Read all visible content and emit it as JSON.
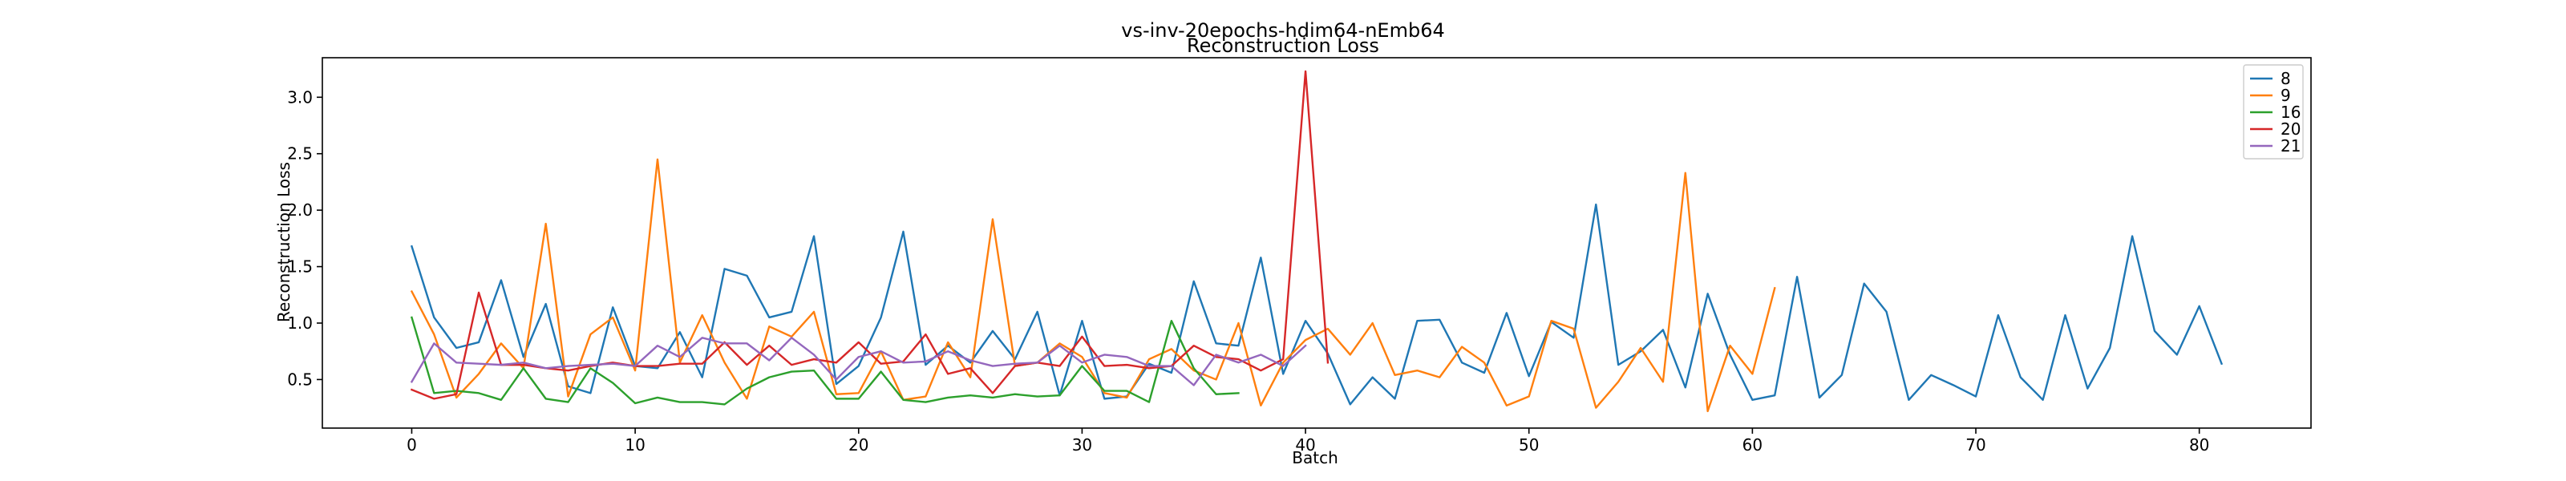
{
  "chart_data": {
    "type": "line",
    "title": "vs-inv-20epochs-hdim64-nEmb64",
    "subtitle": "Reconstruction Loss",
    "xlabel": "Batch",
    "ylabel": "Reconstruction Loss",
    "xlim": [
      -4,
      85
    ],
    "ylim": [
      0.07,
      3.35
    ],
    "xticks": [
      0,
      10,
      20,
      30,
      40,
      50,
      60,
      70,
      80
    ],
    "yticks": [
      0.5,
      1.0,
      1.5,
      2.0,
      2.5,
      3.0
    ],
    "ytick_labels": [
      "0.5",
      "1.0",
      "1.5",
      "2.0",
      "2.5",
      "3.0"
    ],
    "grid": false,
    "legend_position": "top-right",
    "series": [
      {
        "name": "8",
        "color": "#1f77b4",
        "values": [
          1.68,
          1.05,
          0.78,
          0.83,
          1.38,
          0.7,
          1.17,
          0.44,
          0.38,
          1.14,
          0.62,
          0.6,
          0.92,
          0.52,
          1.48,
          1.42,
          1.05,
          1.1,
          1.77,
          0.46,
          0.62,
          1.05,
          1.81,
          0.63,
          0.8,
          0.65,
          0.93,
          0.68,
          1.1,
          0.36,
          1.02,
          0.33,
          0.35,
          0.64,
          0.56,
          1.37,
          0.82,
          0.8,
          1.58,
          0.55,
          1.02,
          0.73,
          0.28,
          0.52,
          0.33,
          1.02,
          1.03,
          0.65,
          0.56,
          1.09,
          0.53,
          1.01,
          0.87,
          2.05,
          0.63,
          0.75,
          0.94,
          0.43,
          1.26,
          0.72,
          0.32,
          0.36,
          1.41,
          0.34,
          0.54,
          1.35,
          1.1,
          0.32,
          0.54,
          0.45,
          0.35,
          1.07,
          0.52,
          0.32,
          1.07,
          0.42,
          0.78,
          1.77,
          0.93,
          0.72,
          1.15,
          0.64
        ]
      },
      {
        "name": "9",
        "color": "#ff7f0e",
        "values": [
          1.28,
          0.9,
          0.34,
          0.55,
          0.82,
          0.6,
          1.88,
          0.35,
          0.9,
          1.05,
          0.58,
          2.45,
          0.65,
          1.07,
          0.65,
          0.33,
          0.97,
          0.88,
          1.1,
          0.37,
          0.38,
          0.75,
          0.32,
          0.35,
          0.83,
          0.52,
          1.92,
          0.62,
          0.65,
          0.82,
          0.7,
          0.38,
          0.34,
          0.68,
          0.77,
          0.58,
          0.5,
          1.0,
          0.27,
          0.65,
          0.85,
          0.95,
          0.72,
          1.0,
          0.54,
          0.58,
          0.52,
          0.79,
          0.65,
          0.27,
          0.35,
          1.02,
          0.95,
          0.25,
          0.48,
          0.78,
          0.48,
          2.33,
          0.22,
          0.8,
          0.55,
          1.31
        ]
      },
      {
        "name": "16",
        "color": "#2ca02c",
        "values": [
          1.05,
          0.38,
          0.4,
          0.38,
          0.32,
          0.6,
          0.33,
          0.3,
          0.6,
          0.47,
          0.29,
          0.34,
          0.3,
          0.3,
          0.28,
          0.42,
          0.52,
          0.57,
          0.58,
          0.33,
          0.33,
          0.57,
          0.32,
          0.3,
          0.34,
          0.36,
          0.34,
          0.37,
          0.35,
          0.36,
          0.62,
          0.4,
          0.4,
          0.3,
          1.02,
          0.6,
          0.37,
          0.38
        ]
      },
      {
        "name": "20",
        "color": "#d62728",
        "values": [
          0.41,
          0.33,
          0.37,
          1.27,
          0.63,
          0.63,
          0.6,
          0.58,
          0.62,
          0.65,
          0.62,
          0.62,
          0.64,
          0.64,
          0.83,
          0.63,
          0.8,
          0.63,
          0.68,
          0.65,
          0.83,
          0.64,
          0.66,
          0.9,
          0.55,
          0.6,
          0.38,
          0.62,
          0.65,
          0.62,
          0.88,
          0.62,
          0.63,
          0.6,
          0.62,
          0.8,
          0.7,
          0.68,
          0.58,
          0.68,
          3.23,
          0.65
        ]
      },
      {
        "name": "21",
        "color": "#9467bd",
        "values": [
          0.48,
          0.82,
          0.65,
          0.64,
          0.63,
          0.65,
          0.6,
          0.62,
          0.63,
          0.64,
          0.62,
          0.8,
          0.7,
          0.87,
          0.82,
          0.82,
          0.67,
          0.87,
          0.72,
          0.5,
          0.7,
          0.75,
          0.65,
          0.66,
          0.75,
          0.67,
          0.62,
          0.64,
          0.65,
          0.8,
          0.65,
          0.72,
          0.7,
          0.62,
          0.62,
          0.45,
          0.72,
          0.65,
          0.72,
          0.62,
          0.8
        ]
      }
    ]
  }
}
